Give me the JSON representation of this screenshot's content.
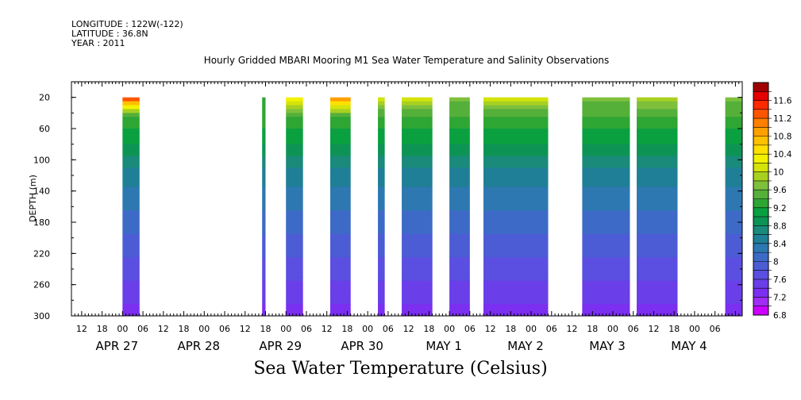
{
  "header": {
    "longitude": "LONGITUDE : 122W(-122)",
    "latitude": "LATITUDE : 36.8N",
    "year": "YEAR : 2011"
  },
  "chart_data": {
    "type": "heatmap",
    "title": "Hourly Gridded MBARI Mooring M1 Sea Water Temperature and Salinity Observations",
    "subtitle": "Sea Water Temperature (Celsius)",
    "ylabel": "DEPTH (m)",
    "ylim": [
      300,
      0
    ],
    "y_ticks": [
      20,
      60,
      100,
      140,
      180,
      220,
      260,
      300
    ],
    "x_range_hours": [
      "APR 26 09:00",
      "MAY 4 14:00"
    ],
    "x_hour_ticks": [
      "12",
      "18",
      "00",
      "06",
      "12",
      "18",
      "00",
      "06",
      "12",
      "18",
      "00",
      "06",
      "12",
      "18",
      "00",
      "06",
      "12",
      "18",
      "00",
      "06",
      "12",
      "18",
      "00",
      "06",
      "12",
      "18",
      "00",
      "06",
      "12",
      "18",
      "00",
      "06"
    ],
    "x_date_labels": [
      "APR 27",
      "APR 28",
      "APR 29",
      "APR 30",
      "MAY  1",
      "MAY  2",
      "MAY  3",
      "MAY  4"
    ],
    "colorbar": {
      "levels": [
        6.8,
        7.0,
        7.2,
        7.4,
        7.6,
        7.8,
        8.0,
        8.2,
        8.4,
        8.6,
        8.8,
        9.0,
        9.2,
        9.4,
        9.6,
        9.8,
        10.0,
        10.2,
        10.4,
        10.6,
        10.8,
        11.0,
        11.2,
        11.4,
        11.6,
        11.8
      ],
      "labels": [
        "6.8",
        "7.2",
        "7.6",
        "8",
        "8.4",
        "8.8",
        "9.2",
        "9.6",
        "10",
        "10.4",
        "10.8",
        "11.2",
        "11.6"
      ],
      "colors": [
        "#cc00ff",
        "#a02cf5",
        "#7b2ff0",
        "#6a3ee8",
        "#5a4fe0",
        "#4c5cd4",
        "#3d6ac6",
        "#2e78b2",
        "#1f7f96",
        "#1a8a7a",
        "#0d9455",
        "#0aa040",
        "#2ea634",
        "#55b03a",
        "#7ec03c",
        "#a8d020",
        "#d4e40a",
        "#f2f200",
        "#ffe000",
        "#ffc000",
        "#ffa000",
        "#ff7f00",
        "#ff5500",
        "#ff2a00",
        "#e60000",
        "#a00000"
      ]
    },
    "segments": [
      {
        "start": "APR 27 00:00",
        "end": "APR 27 05:00",
        "surface_temp": 11.2
      },
      {
        "start": "APR 28 17:00",
        "end": "APR 28 18:00",
        "surface_temp": 9.2
      },
      {
        "start": "APR 29 00:00",
        "end": "APR 29 05:00",
        "surface_temp": 10.2
      },
      {
        "start": "APR 29 13:00",
        "end": "APR 29 19:00",
        "surface_temp": 10.8
      },
      {
        "start": "APR 30 03:00",
        "end": "APR 30 05:00",
        "surface_temp": 10.0
      },
      {
        "start": "APR 30 10:00",
        "end": "APR 30 19:00",
        "surface_temp": 10.0
      },
      {
        "start": "MAY 1 00:00",
        "end": "MAY 1 06:00",
        "surface_temp": 9.6
      },
      {
        "start": "MAY 1 10:00",
        "end": "MAY 2 05:00",
        "surface_temp": 10.0
      },
      {
        "start": "MAY 2 15:00",
        "end": "MAY 3 05:00",
        "surface_temp": 9.6
      },
      {
        "start": "MAY 3 07:00",
        "end": "MAY 3 19:00",
        "surface_temp": 9.8
      },
      {
        "start": "MAY 4 09:00",
        "end": "MAY 4 14:00",
        "surface_temp": 9.6
      }
    ]
  }
}
